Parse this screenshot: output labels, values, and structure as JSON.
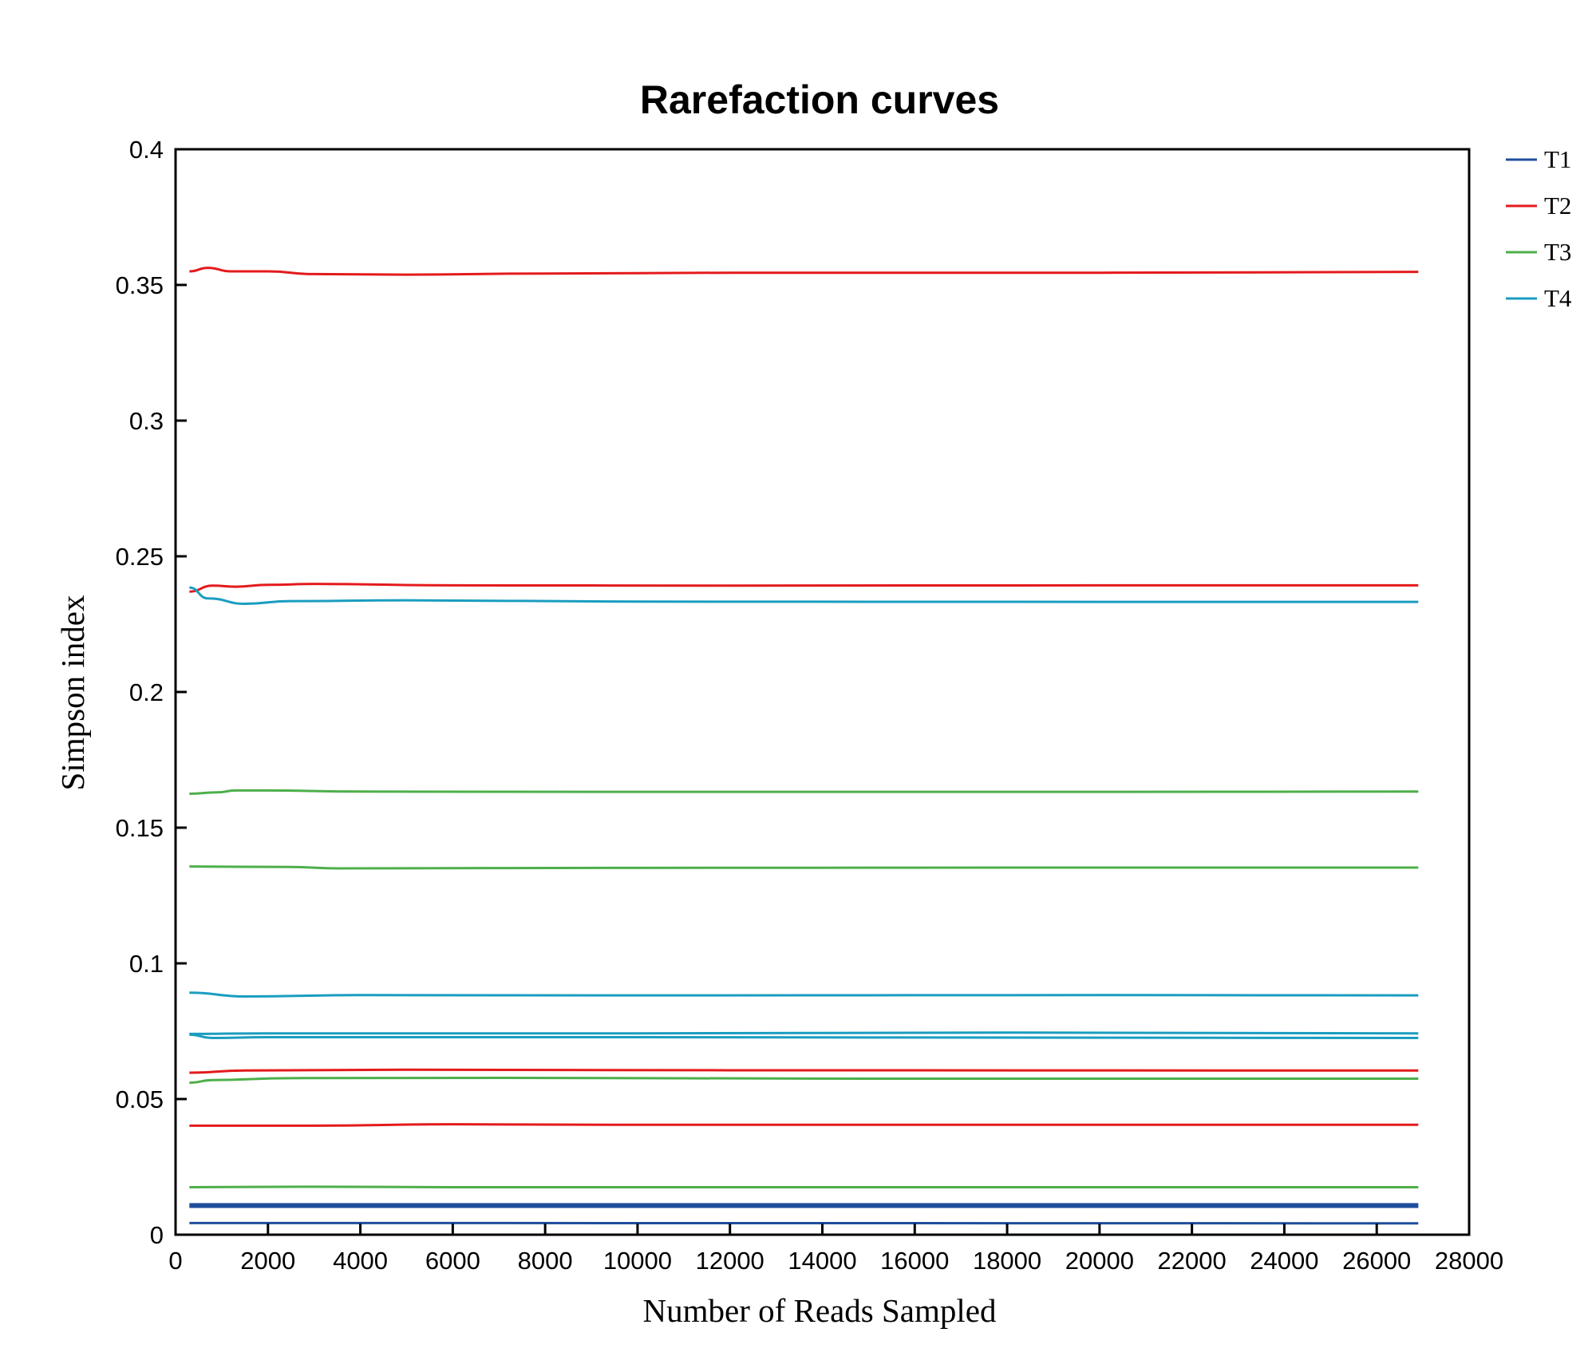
{
  "chart_data": {
    "type": "line",
    "title": "Rarefaction curves",
    "xlabel": "Number of Reads Sampled",
    "ylabel": "Simpson index",
    "xlim": [
      0,
      28000
    ],
    "ylim": [
      0,
      0.4
    ],
    "xticks": [
      0,
      2000,
      4000,
      6000,
      8000,
      10000,
      12000,
      14000,
      16000,
      18000,
      20000,
      22000,
      24000,
      26000,
      28000
    ],
    "yticks": [
      0,
      0.05,
      0.1,
      0.15,
      0.2,
      0.25,
      0.3,
      0.35,
      0.4
    ],
    "ytick_labels": [
      "0",
      "0.05",
      "0.1",
      "0.15",
      "0.2",
      "0.25",
      "0.3",
      "0.35",
      "0.4"
    ],
    "grid": false,
    "legend_position": "right-top",
    "legend": [
      {
        "name": "T1",
        "color": "#1f4e9c"
      },
      {
        "name": "T2",
        "color": "#e41a1c"
      },
      {
        "name": "T3",
        "color": "#4daf4a"
      },
      {
        "name": "T4",
        "color": "#1a9dc0"
      }
    ],
    "curves": [
      {
        "series": "T2",
        "points": [
          [
            300,
            0.355
          ],
          [
            700,
            0.3563
          ],
          [
            1200,
            0.355
          ],
          [
            2000,
            0.355
          ],
          [
            3000,
            0.354
          ],
          [
            5000,
            0.3538
          ],
          [
            8000,
            0.3542
          ],
          [
            12000,
            0.3545
          ],
          [
            20000,
            0.3545
          ],
          [
            26900,
            0.3548
          ]
        ]
      },
      {
        "series": "T2",
        "points": [
          [
            300,
            0.237
          ],
          [
            800,
            0.2392
          ],
          [
            1300,
            0.2388
          ],
          [
            2000,
            0.2395
          ],
          [
            3000,
            0.2398
          ],
          [
            6000,
            0.2393
          ],
          [
            12000,
            0.2392
          ],
          [
            20000,
            0.2393
          ],
          [
            26900,
            0.2393
          ]
        ]
      },
      {
        "series": "T4",
        "points": [
          [
            300,
            0.2385
          ],
          [
            700,
            0.2345
          ],
          [
            1500,
            0.2325
          ],
          [
            2500,
            0.2335
          ],
          [
            5000,
            0.2338
          ],
          [
            10000,
            0.2333
          ],
          [
            20000,
            0.2332
          ],
          [
            26900,
            0.2332
          ]
        ]
      },
      {
        "series": "T3",
        "points": [
          [
            300,
            0.1625
          ],
          [
            900,
            0.163
          ],
          [
            1300,
            0.1637
          ],
          [
            2000,
            0.1637
          ],
          [
            4000,
            0.1633
          ],
          [
            10000,
            0.1632
          ],
          [
            20000,
            0.1632
          ],
          [
            26900,
            0.1633
          ]
        ]
      },
      {
        "series": "T3",
        "points": [
          [
            300,
            0.1357
          ],
          [
            2500,
            0.1355
          ],
          [
            3500,
            0.135
          ],
          [
            10000,
            0.1352
          ],
          [
            20000,
            0.1353
          ],
          [
            26900,
            0.1353
          ]
        ]
      },
      {
        "series": "T4",
        "points": [
          [
            300,
            0.0892
          ],
          [
            1500,
            0.0878
          ],
          [
            4000,
            0.0883
          ],
          [
            10000,
            0.0882
          ],
          [
            20000,
            0.0883
          ],
          [
            26900,
            0.0882
          ]
        ]
      },
      {
        "series": "T4",
        "points": [
          [
            300,
            0.074
          ],
          [
            2000,
            0.0742
          ],
          [
            10000,
            0.0742
          ],
          [
            18000,
            0.0745
          ],
          [
            26900,
            0.0742
          ]
        ]
      },
      {
        "series": "T4",
        "points": [
          [
            300,
            0.0737
          ],
          [
            800,
            0.0725
          ],
          [
            2000,
            0.0728
          ],
          [
            10000,
            0.0728
          ],
          [
            20000,
            0.0726
          ],
          [
            26900,
            0.0725
          ]
        ]
      },
      {
        "series": "T2",
        "points": [
          [
            300,
            0.0597
          ],
          [
            1500,
            0.0605
          ],
          [
            5000,
            0.0608
          ],
          [
            12000,
            0.0606
          ],
          [
            26900,
            0.0605
          ]
        ]
      },
      {
        "series": "T3",
        "points": [
          [
            300,
            0.056
          ],
          [
            800,
            0.057
          ],
          [
            2500,
            0.0577
          ],
          [
            7000,
            0.0578
          ],
          [
            15000,
            0.0575
          ],
          [
            26900,
            0.0575
          ]
        ]
      },
      {
        "series": "T2",
        "points": [
          [
            300,
            0.0402
          ],
          [
            3000,
            0.0402
          ],
          [
            6000,
            0.0407
          ],
          [
            10000,
            0.0405
          ],
          [
            26900,
            0.0405
          ]
        ]
      },
      {
        "series": "T3",
        "points": [
          [
            300,
            0.0175
          ],
          [
            3000,
            0.0177
          ],
          [
            6000,
            0.0175
          ],
          [
            26900,
            0.0175
          ]
        ]
      },
      {
        "series": "T1",
        "points": [
          [
            300,
            0.0112
          ],
          [
            26900,
            0.0112
          ]
        ]
      },
      {
        "series": "T1",
        "points": [
          [
            300,
            0.0106
          ],
          [
            26900,
            0.0106
          ]
        ]
      },
      {
        "series": "T1",
        "points": [
          [
            300,
            0.0103
          ],
          [
            26900,
            0.0103
          ]
        ]
      },
      {
        "series": "T1",
        "points": [
          [
            300,
            0.0043
          ],
          [
            4000,
            0.0043
          ],
          [
            26900,
            0.0042
          ]
        ]
      }
    ]
  }
}
